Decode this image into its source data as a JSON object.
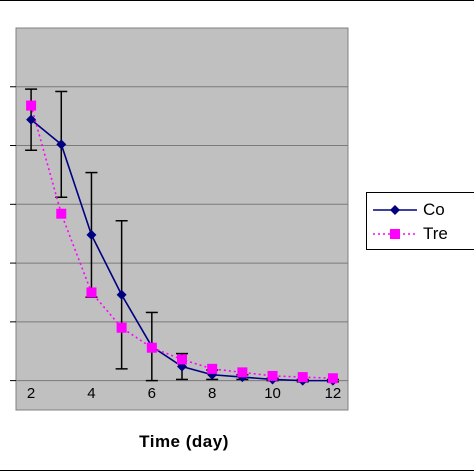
{
  "chart_data": {
    "type": "line",
    "title": "",
    "xlabel": "Time (day)",
    "ylabel": "",
    "xlim": [
      1.5,
      12.5
    ],
    "ylim": [
      -0.25,
      3.0
    ],
    "xticks": [
      2,
      4,
      6,
      8,
      10,
      12
    ],
    "y_gridlines": [
      0,
      0.5,
      1.0,
      1.5,
      2.0,
      2.5
    ],
    "grid": true,
    "plot_background": "#c0c0c0",
    "legend": "right",
    "series": [
      {
        "name": "Co",
        "color": "#000080",
        "line_style": "solid",
        "marker": "diamond",
        "x": [
          2,
          3,
          4,
          5,
          6,
          7,
          8,
          9,
          10,
          11,
          12
        ],
        "y": [
          2.22,
          2.01,
          1.24,
          0.73,
          0.29,
          0.12,
          0.05,
          0.03,
          0.01,
          0.0,
          0.0
        ],
        "error": [
          0.26,
          0.45,
          0.53,
          0.63,
          0.29,
          0.11,
          0.04,
          0.02,
          0.01,
          0.01,
          0.01
        ]
      },
      {
        "name": "Tre",
        "color": "#ff00ff",
        "line_style": "dotted",
        "marker": "square",
        "x": [
          2,
          3,
          4,
          5,
          6,
          7,
          8,
          9,
          10,
          11,
          12
        ],
        "y": [
          2.34,
          1.42,
          0.75,
          0.45,
          0.28,
          0.18,
          0.1,
          0.07,
          0.04,
          0.03,
          0.02
        ],
        "error": []
      }
    ]
  }
}
